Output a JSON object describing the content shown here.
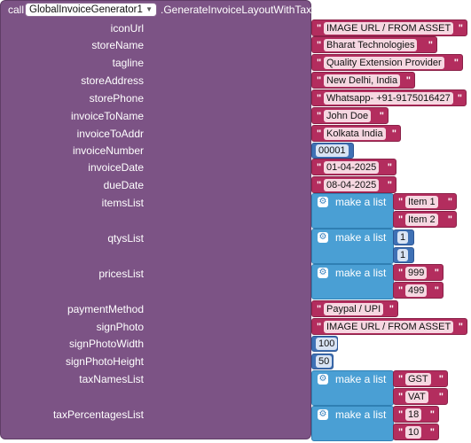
{
  "call_word": "call",
  "component": "GlobalInvoiceGenerator1",
  "method": ".GenerateInvoiceLayoutWithTax",
  "make_list_label": "make a list",
  "params": {
    "iconUrl": {
      "label": "iconUrl",
      "value": "IMAGE URL / FROM ASSET"
    },
    "storeName": {
      "label": "storeName",
      "value": "Bharat Technologies"
    },
    "tagline": {
      "label": "tagline",
      "value": "Quality Extension Provider"
    },
    "storeAddress": {
      "label": "storeAddress",
      "value": "New Delhi, India"
    },
    "storePhone": {
      "label": "storePhone",
      "value": "Whatsapp- +91-9175016427"
    },
    "invoiceToName": {
      "label": "invoiceToName",
      "value": "John Doe"
    },
    "invoiceToAddr": {
      "label": "invoiceToAddr",
      "value": "Kolkata India"
    },
    "invoiceNumber": {
      "label": "invoiceNumber",
      "value": "00001"
    },
    "invoiceDate": {
      "label": "invoiceDate",
      "value": "01-04-2025"
    },
    "dueDate": {
      "label": "dueDate",
      "value": "08-04-2025"
    },
    "itemsList": {
      "label": "itemsList",
      "items": [
        "Item 1",
        "Item 2"
      ]
    },
    "qtysList": {
      "label": "qtysList",
      "items": [
        "1",
        "1"
      ]
    },
    "pricesList": {
      "label": "pricesList",
      "items": [
        "999",
        "499"
      ]
    },
    "paymentMethod": {
      "label": "paymentMethod",
      "value": "Paypal / UPI"
    },
    "signPhoto": {
      "label": "signPhoto",
      "value": "IMAGE URL / FROM ASSET"
    },
    "signPhotoWidth": {
      "label": "signPhotoWidth",
      "value": "100"
    },
    "signPhotoHeight": {
      "label": "signPhotoHeight",
      "value": "50"
    },
    "taxNamesList": {
      "label": "taxNamesList",
      "items": [
        "GST",
        "VAT"
      ]
    },
    "taxPercentagesList": {
      "label": "taxPercentagesList",
      "items": [
        "18",
        "10"
      ]
    }
  },
  "colors": {
    "procedure_block": "#7c5385",
    "text_block": "#b32d5e",
    "number_block": "#3f71b5",
    "list_block": "#4a9fd4"
  },
  "icons": {
    "make_list": "gear-icon",
    "dropdown": "chevron-down-icon"
  }
}
